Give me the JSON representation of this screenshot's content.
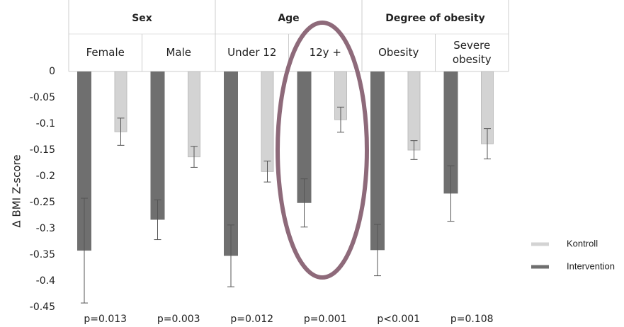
{
  "chart_data": {
    "type": "bar",
    "y_axis_label": "Δ BMI Z-score",
    "groups": [
      {
        "label": "Sex",
        "categories": [
          "Female",
          "Male"
        ]
      },
      {
        "label": "Age",
        "categories": [
          "Under 12",
          "12y +"
        ]
      },
      {
        "label": "Degree of obesity",
        "categories": [
          "Obesity",
          "Severe obesity"
        ]
      }
    ],
    "p_values": [
      "p=0.013",
      "p=0.003",
      "p=0.012",
      "p=0.001",
      "p<0.001",
      "p=0.108"
    ],
    "series": [
      {
        "name": "Kontroll",
        "color": "#d3d3d3",
        "values": [
          -0.115,
          -0.163,
          -0.191,
          -0.092,
          -0.15,
          -0.138
        ],
        "errors": [
          0.026,
          0.02,
          0.02,
          0.024,
          0.018,
          0.029
        ]
      },
      {
        "name": "Intervention",
        "color": "#6f6f6f",
        "values": [
          -0.342,
          -0.283,
          -0.352,
          -0.251,
          -0.341,
          -0.233
        ],
        "errors": [
          0.1,
          0.038,
          0.059,
          0.046,
          0.049,
          0.053
        ]
      }
    ],
    "ylim": [
      -0.45,
      0
    ],
    "yticks": [
      0,
      -0.05,
      -0.1,
      -0.15,
      -0.2,
      -0.25,
      -0.3,
      -0.35,
      -0.4,
      -0.45
    ],
    "legend": "right"
  }
}
